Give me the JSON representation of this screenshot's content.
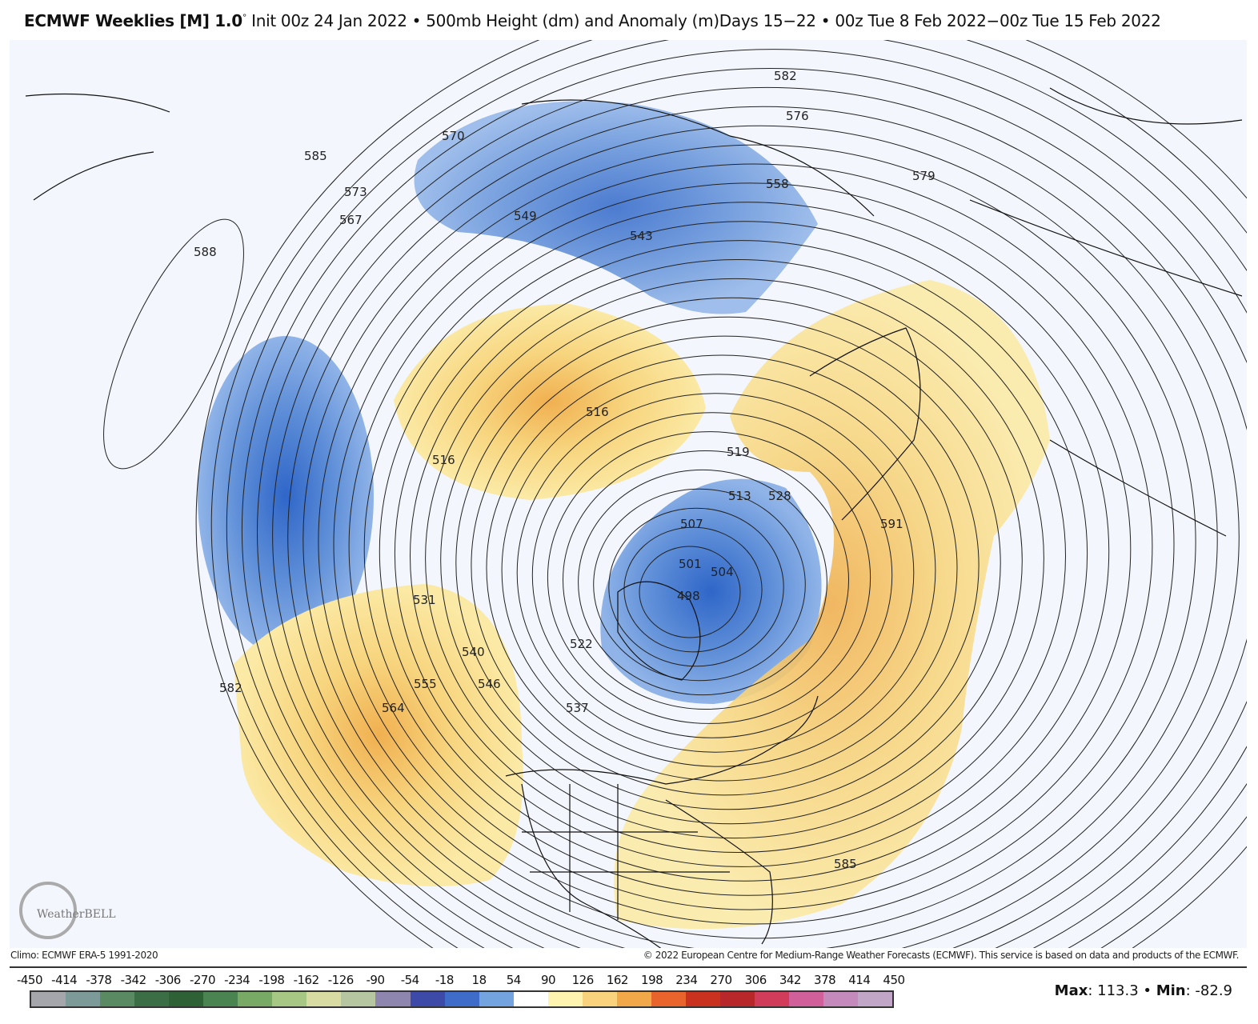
{
  "header": {
    "model": "ECMWF Weeklies [M] 1.0",
    "degree": "°",
    "description": "Init 00z 24 Jan 2022 • 500mb Height (dm) and Anomaly (m)Days 15−22 • 00z Tue 8 Feb 2022−00z Tue 15 Feb 2022"
  },
  "map": {
    "background_color": "#f3f6fc",
    "positive_anomaly_color": "#f5d77a",
    "negative_anomaly_color": "#5f8fd8",
    "contour_labels": [
      "570",
      "549",
      "543",
      "558",
      "582",
      "576",
      "579",
      "585",
      "573",
      "567",
      "588",
      "516",
      "516",
      "513",
      "528",
      "507",
      "501",
      "504",
      "498",
      "519",
      "522",
      "531",
      "540",
      "546",
      "555",
      "564",
      "537",
      "582",
      "585",
      "591"
    ],
    "logo_text": "WeatherBELL"
  },
  "footer": {
    "climo": "Climo: ECMWF ERA-5 1991-2020",
    "copyright": "© 2022 European Centre for Medium-Range Weather Forecasts (ECMWF). This service is based on data and products of the ECMWF."
  },
  "colorbar": {
    "ticks": [
      "-450",
      "-414",
      "-378",
      "-342",
      "-306",
      "-270",
      "-234",
      "-198",
      "-162",
      "-126",
      "-90",
      "-54",
      "-18",
      "18",
      "54",
      "90",
      "126",
      "162",
      "198",
      "234",
      "270",
      "306",
      "342",
      "378",
      "414",
      "450"
    ],
    "colors": [
      "#a4a6ac",
      "#7c9a98",
      "#5a8a62",
      "#3c6e46",
      "#2e6236",
      "#4a8450",
      "#78aa66",
      "#a6c884",
      "#d8dca2",
      "#b6c6a0",
      "#8e86ae",
      "#3e4aa8",
      "#3f6cc8",
      "#73a4e0",
      "#ffffff",
      "#fff3b0",
      "#f8d27c",
      "#f0a848",
      "#e8642c",
      "#c8321e",
      "#b8282a",
      "#d03c5a",
      "#d0609a",
      "#c48abc",
      "#c2a6c8"
    ]
  },
  "stats": {
    "max_label": "Max",
    "max": "113.3",
    "min_label": "Min",
    "min": "-82.9"
  }
}
